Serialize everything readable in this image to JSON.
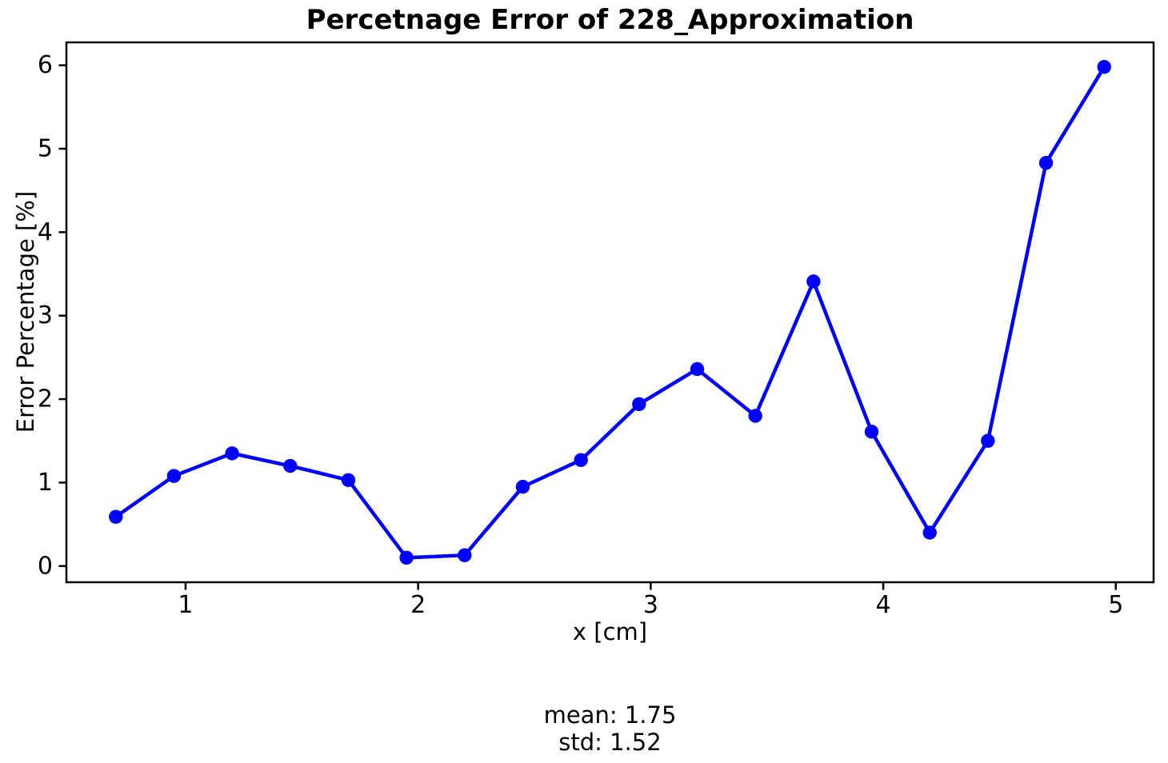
{
  "figure": {
    "background": "#ffffff",
    "text_color": "#000000",
    "axis_color": "#000000"
  },
  "chart_data": {
    "type": "line",
    "title": "Percetnage Error of 228_Approximation",
    "xlabel": "x [cm]",
    "ylabel": "Error Percentage [%]",
    "x": [
      0.7,
      0.95,
      1.2,
      1.45,
      1.7,
      1.95,
      2.2,
      2.45,
      2.7,
      2.95,
      3.2,
      3.45,
      3.7,
      3.95,
      4.2,
      4.45,
      4.7,
      4.95
    ],
    "y": [
      0.59,
      1.08,
      1.35,
      1.2,
      1.03,
      0.1,
      0.13,
      0.95,
      1.27,
      1.94,
      2.36,
      1.8,
      3.41,
      1.61,
      0.4,
      1.5,
      4.83,
      5.98
    ],
    "x_ticks": [
      "1",
      "2",
      "3",
      "4",
      "5"
    ],
    "x_tick_values": [
      1,
      2,
      3,
      4,
      5
    ],
    "y_ticks": [
      "0",
      "1",
      "2",
      "3",
      "4",
      "5",
      "6"
    ],
    "y_tick_values": [
      0,
      1,
      2,
      3,
      4,
      5,
      6
    ],
    "xlim": [
      0.4875,
      5.1625
    ],
    "ylim": [
      -0.194,
      6.274
    ],
    "line_color": "#0000ff",
    "marker": "circle",
    "grid": false,
    "legend_position": "none"
  },
  "annotation": {
    "mean": "mean: 1.75",
    "std": "std: 1.52"
  }
}
